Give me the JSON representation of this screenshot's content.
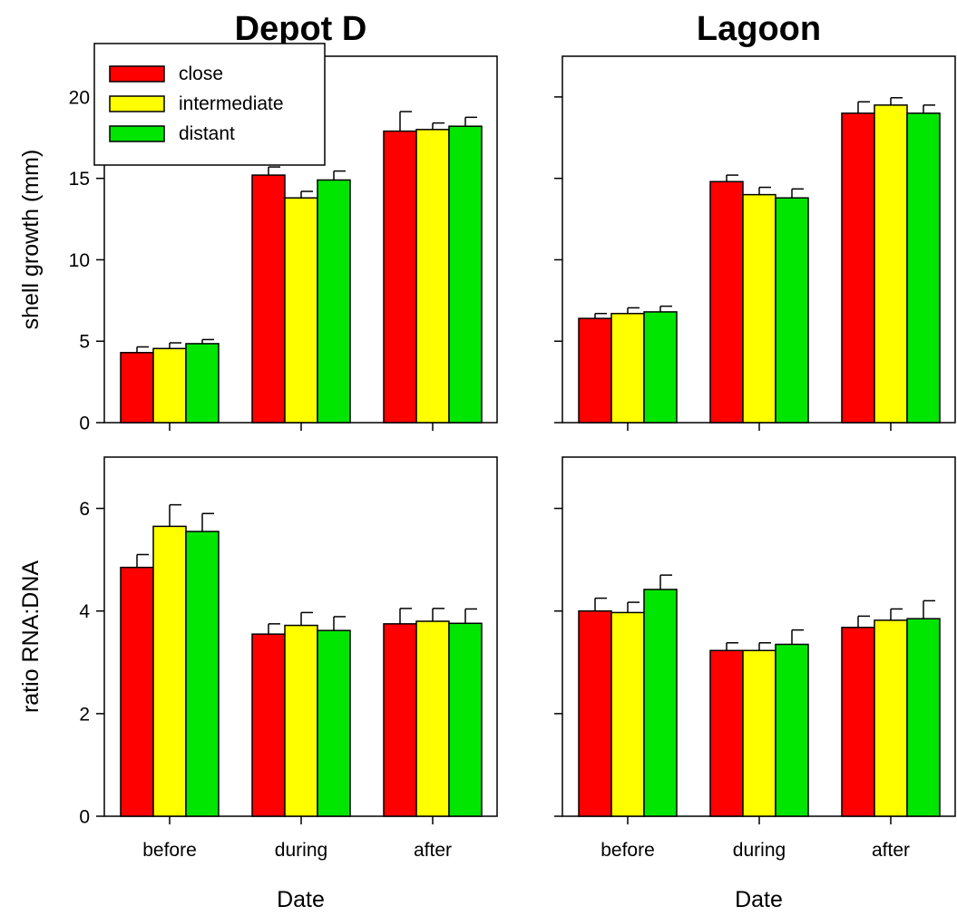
{
  "figure": {
    "x_axis_label": "Date"
  },
  "legend": [
    {
      "label": "close",
      "color": "#ff0000"
    },
    {
      "label": "intermediate",
      "color": "#ffff00"
    },
    {
      "label": "distant",
      "color": "#00e600"
    }
  ],
  "chart_data": [
    {
      "type": "bar",
      "panel": "top-left",
      "title": "Depot D",
      "ylabel": "shell growth (mm)",
      "xlabel": "",
      "categories": [
        "before",
        "during",
        "after"
      ],
      "ylim": [
        0,
        22.5
      ],
      "yticks": [
        0,
        5,
        10,
        15,
        20
      ],
      "legend_position": "top-left",
      "series": [
        {
          "name": "close",
          "values": [
            4.3,
            15.2,
            17.9
          ],
          "errors": [
            0.35,
            0.5,
            1.2
          ]
        },
        {
          "name": "intermediate",
          "values": [
            4.55,
            13.8,
            18.0
          ],
          "errors": [
            0.35,
            0.4,
            0.4
          ]
        },
        {
          "name": "distant",
          "values": [
            4.85,
            14.9,
            18.2
          ],
          "errors": [
            0.25,
            0.55,
            0.55
          ]
        }
      ]
    },
    {
      "type": "bar",
      "panel": "top-right",
      "title": "Lagoon",
      "ylabel": "",
      "xlabel": "",
      "categories": [
        "before",
        "during",
        "after"
      ],
      "ylim": [
        0,
        22.5
      ],
      "yticks": [
        0,
        5,
        10,
        15,
        20
      ],
      "series": [
        {
          "name": "close",
          "values": [
            6.4,
            14.8,
            19.0
          ],
          "errors": [
            0.3,
            0.4,
            0.7
          ]
        },
        {
          "name": "intermediate",
          "values": [
            6.7,
            14.0,
            19.5
          ],
          "errors": [
            0.35,
            0.45,
            0.45
          ]
        },
        {
          "name": "distant",
          "values": [
            6.8,
            13.8,
            19.0
          ],
          "errors": [
            0.35,
            0.55,
            0.5
          ]
        }
      ]
    },
    {
      "type": "bar",
      "panel": "bottom-left",
      "title": "",
      "ylabel": "ratio RNA:DNA",
      "xlabel": "Date",
      "categories": [
        "before",
        "during",
        "after"
      ],
      "ylim": [
        0,
        7
      ],
      "yticks": [
        0,
        2,
        4,
        6
      ],
      "series": [
        {
          "name": "close",
          "values": [
            4.85,
            3.55,
            3.75
          ],
          "errors": [
            0.25,
            0.2,
            0.3
          ]
        },
        {
          "name": "intermediate",
          "values": [
            5.65,
            3.72,
            3.8
          ],
          "errors": [
            0.42,
            0.25,
            0.25
          ]
        },
        {
          "name": "distant",
          "values": [
            5.55,
            3.62,
            3.76
          ],
          "errors": [
            0.35,
            0.27,
            0.28
          ]
        }
      ]
    },
    {
      "type": "bar",
      "panel": "bottom-right",
      "title": "",
      "ylabel": "",
      "xlabel": "Date",
      "categories": [
        "before",
        "during",
        "after"
      ],
      "ylim": [
        0,
        7
      ],
      "yticks": [
        0,
        2,
        4,
        6
      ],
      "series": [
        {
          "name": "close",
          "values": [
            4.0,
            3.23,
            3.68
          ],
          "errors": [
            0.25,
            0.15,
            0.22
          ]
        },
        {
          "name": "intermediate",
          "values": [
            3.97,
            3.23,
            3.82
          ],
          "errors": [
            0.2,
            0.15,
            0.22
          ]
        },
        {
          "name": "distant",
          "values": [
            4.42,
            3.35,
            3.85
          ],
          "errors": [
            0.28,
            0.28,
            0.35
          ]
        }
      ]
    }
  ]
}
